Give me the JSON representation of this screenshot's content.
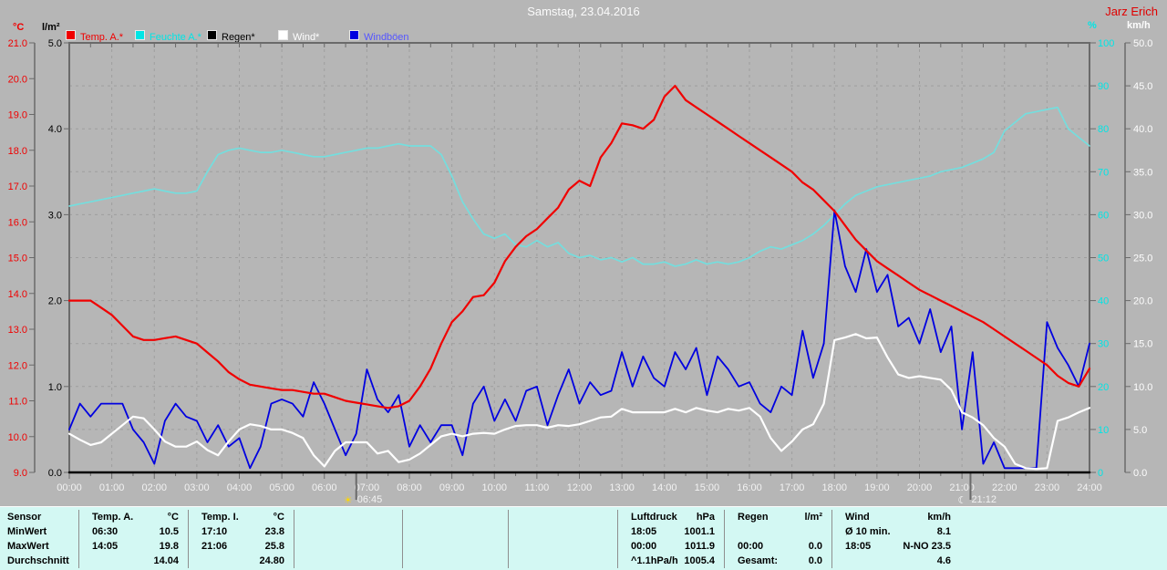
{
  "header": {
    "title": "Samstag, 23.04.2016",
    "station": "Jarz Erich"
  },
  "legend": {
    "items": [
      {
        "name": "temp",
        "label": "Temp. A.*",
        "color": "#f00000",
        "swatch": "#f00000"
      },
      {
        "name": "humidity",
        "label": "Feuchte A.*",
        "color": "#00e5e5",
        "swatch": "#00e5e5"
      },
      {
        "name": "rain",
        "label": "Regen*",
        "color": "#000000",
        "swatch": "#000000"
      },
      {
        "name": "wind",
        "label": "Wind*",
        "color": "#ffffff",
        "swatch": "#ffffff"
      },
      {
        "name": "gusts",
        "label": "Windböen",
        "color": "#5555ff",
        "swatch": "#0000e0"
      }
    ]
  },
  "axes": {
    "temp": {
      "unit": "°C",
      "min": 9,
      "max": 21,
      "step": 1,
      "decimals": 1,
      "color": "#f00000"
    },
    "rain": {
      "unit": "l/m²",
      "min": 0,
      "max": 5,
      "step": 1,
      "decimals": 1,
      "color": "#000000"
    },
    "humidity": {
      "unit": "%",
      "min": 0,
      "max": 100,
      "step": 10,
      "decimals": 0,
      "color": "#00e5e5"
    },
    "wind": {
      "unit": "km/h",
      "min": 0,
      "max": 50,
      "step": 5,
      "decimals": 1,
      "color": "#fdfdfd"
    }
  },
  "x_axis": {
    "labels": [
      "00:00",
      "01:00",
      "02:00",
      "03:00",
      "04:00",
      "05:00",
      "06:00",
      "07:00",
      "08:00",
      "09:00",
      "10:00",
      "11:00",
      "12:00",
      "13:00",
      "14:00",
      "15:00",
      "16:00",
      "17:00",
      "18:00",
      "19:00",
      "20:00",
      "21:00",
      "22:00",
      "23:00",
      "24:00"
    ]
  },
  "markers": [
    {
      "time": "06:45",
      "hour": 6.75,
      "icon": "sunrise-icon",
      "glyph": "☀",
      "glyph_color": "#ffd800"
    },
    {
      "time": "21:12",
      "hour": 21.2,
      "icon": "moonset-icon",
      "glyph": "☾",
      "glyph_color": "#ffffff"
    }
  ],
  "chart_data": {
    "type": "line",
    "title": "Samstag, 23.04.2016",
    "x_unit": "hour_of_day",
    "x_range": [
      0,
      24
    ],
    "grid": true,
    "series": [
      {
        "name": "Feuchte A.",
        "axis": "humidity",
        "color": "#74dede",
        "width": 1.7,
        "x_step": 0.25,
        "values": [
          62,
          62.5,
          63,
          63.5,
          64,
          64.5,
          65,
          65.5,
          66,
          65.5,
          65,
          65,
          65.5,
          70,
          74,
          75,
          75.5,
          75,
          74.5,
          74.5,
          75,
          74.5,
          74,
          73.5,
          73.5,
          74,
          74.5,
          75,
          75.5,
          75.5,
          76,
          76.5,
          76,
          76,
          76,
          74,
          69,
          63,
          59,
          55.5,
          54.5,
          55.5,
          53,
          52.5,
          54,
          52.5,
          53.5,
          51,
          50,
          50.5,
          49.5,
          50,
          49,
          50,
          48.5,
          48.5,
          49,
          48,
          48.5,
          49.5,
          48.5,
          49,
          48.5,
          49,
          50,
          51.5,
          52.5,
          52,
          53,
          54,
          55.5,
          57.5,
          60,
          62.5,
          64.5,
          65.5,
          66.5,
          67,
          67.5,
          68,
          68.5,
          69,
          70,
          70.5,
          71,
          72,
          73,
          74.5,
          79.5,
          81.5,
          83.5,
          84,
          84.5,
          85,
          80,
          78,
          76
        ]
      },
      {
        "name": "Windböen",
        "axis": "wind",
        "color": "#0000e0",
        "width": 1.8,
        "x_step": 0.25,
        "values": [
          5,
          8,
          6.5,
          8,
          8,
          8,
          5,
          3.5,
          1,
          6,
          8,
          6.5,
          6,
          3.5,
          5.5,
          3,
          4,
          0.5,
          3,
          8,
          8.5,
          8,
          6.5,
          10.5,
          8,
          5,
          2,
          4.5,
          12,
          8.5,
          7,
          9,
          3,
          5.5,
          3.5,
          5.5,
          5.5,
          2,
          8,
          10,
          6,
          8.5,
          6,
          9.5,
          10,
          5.5,
          9,
          12,
          8,
          10.5,
          9,
          9.5,
          14,
          10,
          13.5,
          11,
          10,
          14,
          12,
          14.5,
          9,
          13.5,
          12,
          10,
          10.5,
          8,
          7,
          10,
          9,
          16.5,
          11,
          15,
          30.5,
          24,
          21,
          26,
          21,
          23,
          17,
          18,
          15,
          19,
          14,
          17,
          5,
          14,
          1,
          3.5,
          0.5,
          0.5,
          0.5,
          0.5,
          17.5,
          14.5,
          12.5,
          10,
          15
        ]
      },
      {
        "name": "Wind",
        "axis": "wind",
        "color": "#ffffff",
        "width": 2.2,
        "x_step": 0.25,
        "values": [
          4.5,
          3.8,
          3.2,
          3.5,
          4.5,
          5.5,
          6.5,
          6.3,
          5,
          3.6,
          3,
          3,
          3.6,
          2.6,
          2,
          3.6,
          5,
          5.6,
          5.4,
          5,
          5,
          4.6,
          4,
          2,
          0.7,
          2.5,
          3.5,
          3.5,
          3.5,
          2.2,
          2.5,
          1.2,
          1.5,
          2.2,
          3.2,
          4.2,
          4.5,
          4.2,
          4.5,
          4.6,
          4.5,
          5,
          5.4,
          5.5,
          5.5,
          5.2,
          5.5,
          5.4,
          5.6,
          6,
          6.4,
          6.5,
          7.4,
          7,
          7,
          7,
          7,
          7.4,
          7,
          7.5,
          7.2,
          7,
          7.4,
          7.2,
          7.5,
          6.5,
          4,
          2.5,
          3.6,
          5,
          5.6,
          8,
          15.4,
          15.7,
          16.1,
          15.6,
          15.7,
          13.4,
          11.4,
          11,
          11.2,
          11,
          10.8,
          9.6,
          7,
          6.4,
          5.5,
          4,
          3,
          1,
          0.5,
          0.4,
          0.5,
          6,
          6.4,
          7,
          7.5
        ]
      },
      {
        "name": "Temp. A.",
        "axis": "temp",
        "color": "#f00000",
        "width": 2.2,
        "x_step": 0.25,
        "values": [
          13.8,
          13.8,
          13.8,
          13.6,
          13.4,
          13.1,
          12.8,
          12.7,
          12.7,
          12.75,
          12.8,
          12.7,
          12.6,
          12.35,
          12.1,
          11.8,
          11.6,
          11.45,
          11.4,
          11.35,
          11.3,
          11.3,
          11.25,
          11.2,
          11.2,
          11.1,
          11,
          10.95,
          10.9,
          10.85,
          10.8,
          10.85,
          11,
          11.4,
          11.9,
          12.6,
          13.2,
          13.5,
          13.9,
          13.95,
          14.3,
          14.9,
          15.3,
          15.6,
          15.8,
          16.1,
          16.4,
          16.9,
          17.15,
          17,
          17.8,
          18.2,
          18.75,
          18.7,
          18.6,
          18.85,
          19.5,
          19.8,
          19.4,
          19.2,
          19,
          18.8,
          18.6,
          18.4,
          18.2,
          18,
          17.8,
          17.6,
          17.4,
          17.1,
          16.9,
          16.6,
          16.3,
          15.9,
          15.5,
          15.2,
          14.9,
          14.7,
          14.5,
          14.3,
          14.1,
          13.95,
          13.8,
          13.65,
          13.5,
          13.35,
          13.2,
          13,
          12.8,
          12.6,
          12.4,
          12.2,
          12,
          11.7,
          11.5,
          11.4,
          11.9
        ]
      },
      {
        "name": "Regen",
        "axis": "rain",
        "color": "#000000",
        "width": 2.5,
        "x": [
          0,
          24
        ],
        "values": [
          0,
          0
        ]
      }
    ]
  },
  "table": {
    "row_labels": [
      "Sensor",
      "MinWert",
      "MaxWert",
      "Durchschnitt"
    ],
    "columns": [
      {
        "name": "Temp. A.",
        "unit": "°C",
        "rows": [
          [
            "06:30",
            "10.5"
          ],
          [
            "14:05",
            "19.8"
          ],
          [
            "",
            "14.04"
          ]
        ]
      },
      {
        "name": "Temp. I.",
        "unit": "°C",
        "rows": [
          [
            "17:10",
            "23.8"
          ],
          [
            "21:06",
            "25.8"
          ],
          [
            "",
            "24.80"
          ]
        ]
      },
      {
        "name": "",
        "unit": "",
        "rows": [
          [
            "",
            ""
          ],
          [
            "",
            ""
          ],
          [
            "",
            ""
          ]
        ]
      },
      {
        "name": "",
        "unit": "",
        "rows": [
          [
            "",
            ""
          ],
          [
            "",
            ""
          ],
          [
            "",
            ""
          ]
        ]
      },
      {
        "name": "",
        "unit": "",
        "rows": [
          [
            "",
            ""
          ],
          [
            "",
            ""
          ],
          [
            "",
            ""
          ]
        ]
      },
      {
        "name": "Luftdruck",
        "unit": "hPa",
        "rows": [
          [
            "18:05",
            "1001.1"
          ],
          [
            "00:00",
            "1011.9"
          ],
          [
            "^1.1hPa/h",
            "1005.4"
          ]
        ]
      },
      {
        "name": "Regen",
        "unit": "l/m²",
        "rows": [
          [
            "",
            ""
          ],
          [
            "00:00",
            "0.0"
          ],
          [
            "Gesamt:",
            "0.0"
          ]
        ]
      },
      {
        "name": "Wind",
        "unit": "km/h",
        "rows": [
          [
            "Ø 10 min.",
            "8.1"
          ],
          [
            "18:05",
            "N-NO 23.5"
          ],
          [
            "",
            "4.6"
          ]
        ]
      },
      {
        "name": "",
        "unit": "",
        "rows": [
          [
            "",
            ""
          ],
          [
            "",
            ""
          ],
          [
            "",
            ""
          ]
        ]
      }
    ]
  }
}
